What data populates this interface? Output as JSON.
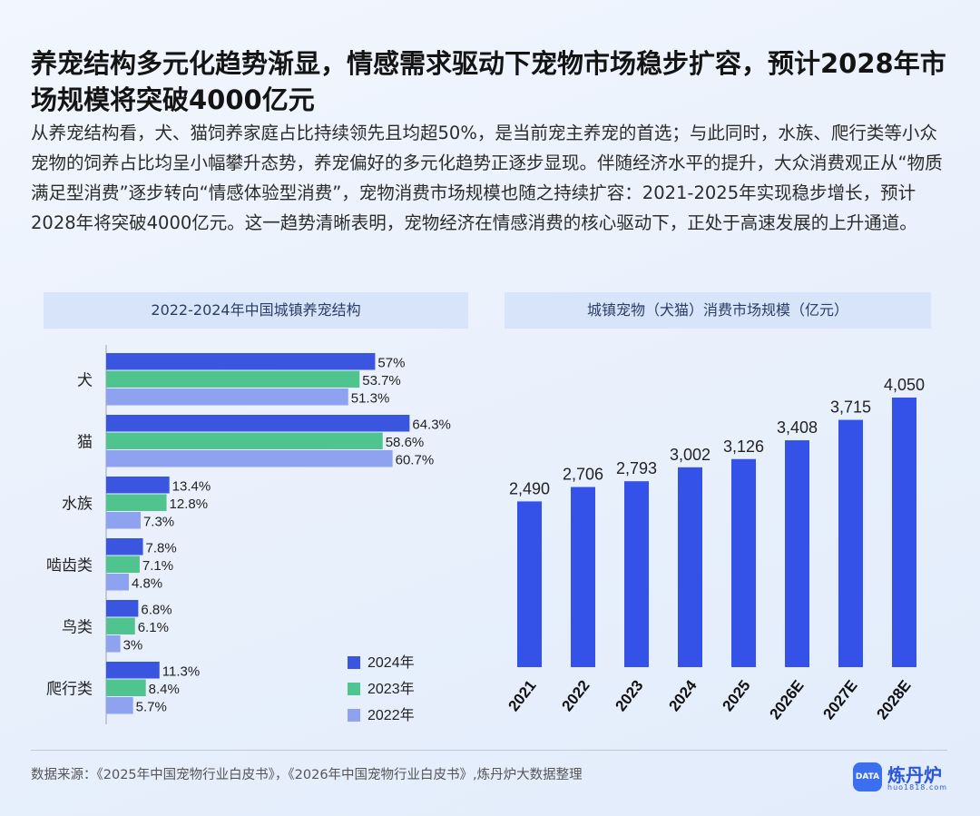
{
  "title": "养宠结构多元化趋势渐显，情感需求驱动下宠物市场稳步扩容，预计2028年市场规模将突破4000亿元",
  "intro": "从养宠结构看，犬、猫饲养家庭占比持续领先且均超50%，是当前宠主养宠的首选；与此同时，水族、爬行类等小众宠物的饲养占比均呈小幅攀升态势，养宠偏好的多元化趋势正逐步显现。伴随经济水平的提升，大众消费观正从“物质满足型消费”逐步转向“情感体验型消费”，宠物消费市场规模也随之持续扩容：2021-2025年实现稳步增长，预计2028年将突破4000亿元。这一趋势清晰表明，宠物经济在情感消费的核心驱动下，正处于高速发展的上升通道。",
  "source": "数据来源：《2025年中国宠物行业白皮书》，《2026年中国宠物行业白皮书》,炼丹炉大数据整理",
  "logo": {
    "name": "炼丹炉",
    "url": "huo1818.com",
    "badge": "DATA"
  },
  "colors": {
    "y2024": "#3a55e0",
    "y2023": "#4fc48e",
    "y2022": "#8fa2ef",
    "market": "#3452e8"
  },
  "chart_data": [
    {
      "type": "bar",
      "orientation": "horizontal",
      "title": "2022-2024年中国城镇养宠结构",
      "categories": [
        "犬",
        "猫",
        "水族",
        "啮齿类",
        "鸟类",
        "爬行类"
      ],
      "series": [
        {
          "name": "2024年",
          "values": [
            57,
            64.3,
            13.4,
            7.8,
            6.8,
            11.3
          ],
          "labels": [
            "57%",
            "64.3%",
            "13.4%",
            "7.8%",
            "6.8%",
            "11.3%"
          ]
        },
        {
          "name": "2023年",
          "values": [
            53.7,
            58.6,
            12.8,
            7.1,
            6.1,
            8.4
          ],
          "labels": [
            "53.7%",
            "58.6%",
            "12.8%",
            "7.1%",
            "6.1%",
            "8.4%"
          ]
        },
        {
          "name": "2022年",
          "values": [
            51.3,
            60.7,
            7.3,
            4.8,
            3,
            5.7
          ],
          "labels": [
            "51.3%",
            "60.7%",
            "7.3%",
            "4.8%",
            "3%",
            "5.7%"
          ]
        }
      ],
      "unit": "%",
      "legend": "bottom-right",
      "xlim": [
        0,
        100
      ]
    },
    {
      "type": "bar",
      "title": "城镇宠物（犬猫）消费市场规模（亿元）",
      "categories": [
        "2021",
        "2022",
        "2023",
        "2024",
        "2025",
        "2026E",
        "2027E",
        "2028E"
      ],
      "values": [
        2490,
        2706,
        2793,
        3002,
        3126,
        3408,
        3715,
        4050
      ],
      "labels": [
        "2,490",
        "2,706",
        "2,793",
        "3,002",
        "3,126",
        "3,408",
        "3,715",
        "4,050"
      ],
      "ylim": [
        0,
        4500
      ]
    }
  ]
}
